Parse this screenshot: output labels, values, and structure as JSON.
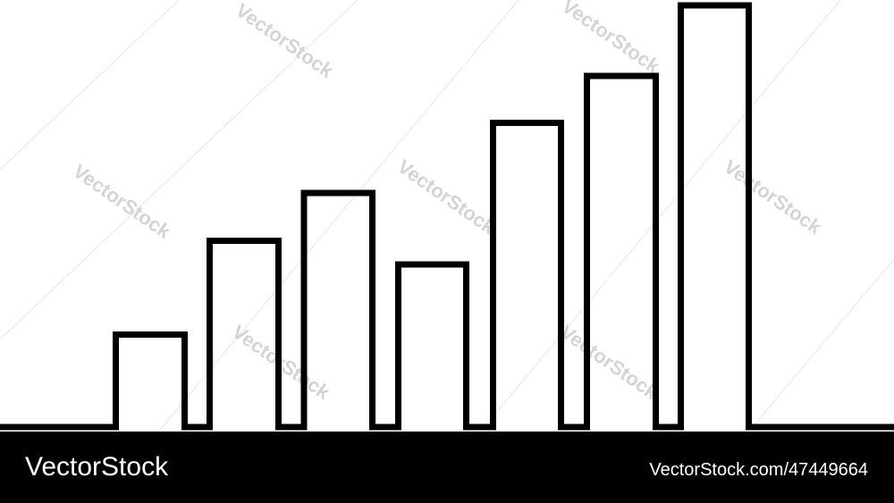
{
  "footer": {
    "brand": "VectorStock",
    "credit": "VectorStock.com/47449664"
  },
  "watermark": "VectorStock"
}
